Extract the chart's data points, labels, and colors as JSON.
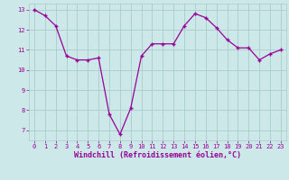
{
  "x": [
    0,
    1,
    2,
    3,
    4,
    5,
    6,
    7,
    8,
    9,
    10,
    11,
    12,
    13,
    14,
    15,
    16,
    17,
    18,
    19,
    20,
    21,
    22,
    23
  ],
  "y": [
    13.0,
    12.7,
    12.2,
    10.7,
    10.5,
    10.5,
    10.6,
    7.8,
    6.8,
    8.1,
    10.7,
    11.3,
    11.3,
    11.3,
    12.2,
    12.8,
    12.6,
    12.1,
    11.5,
    11.1,
    11.1,
    10.5,
    10.8,
    11.0
  ],
  "line_color": "#990099",
  "marker": "+",
  "bg_color": "#cce8e8",
  "grid_color": "#aacccc",
  "xlabel": "Windchill (Refroidissement éolien,°C)",
  "xlabel_color": "#990099",
  "yticks": [
    7,
    8,
    9,
    10,
    11,
    12,
    13
  ],
  "xticks": [
    0,
    1,
    2,
    3,
    4,
    5,
    6,
    7,
    8,
    9,
    10,
    11,
    12,
    13,
    14,
    15,
    16,
    17,
    18,
    19,
    20,
    21,
    22,
    23
  ],
  "xlim": [
    -0.5,
    23.5
  ],
  "ylim": [
    6.5,
    13.3
  ],
  "tick_color": "#990099"
}
